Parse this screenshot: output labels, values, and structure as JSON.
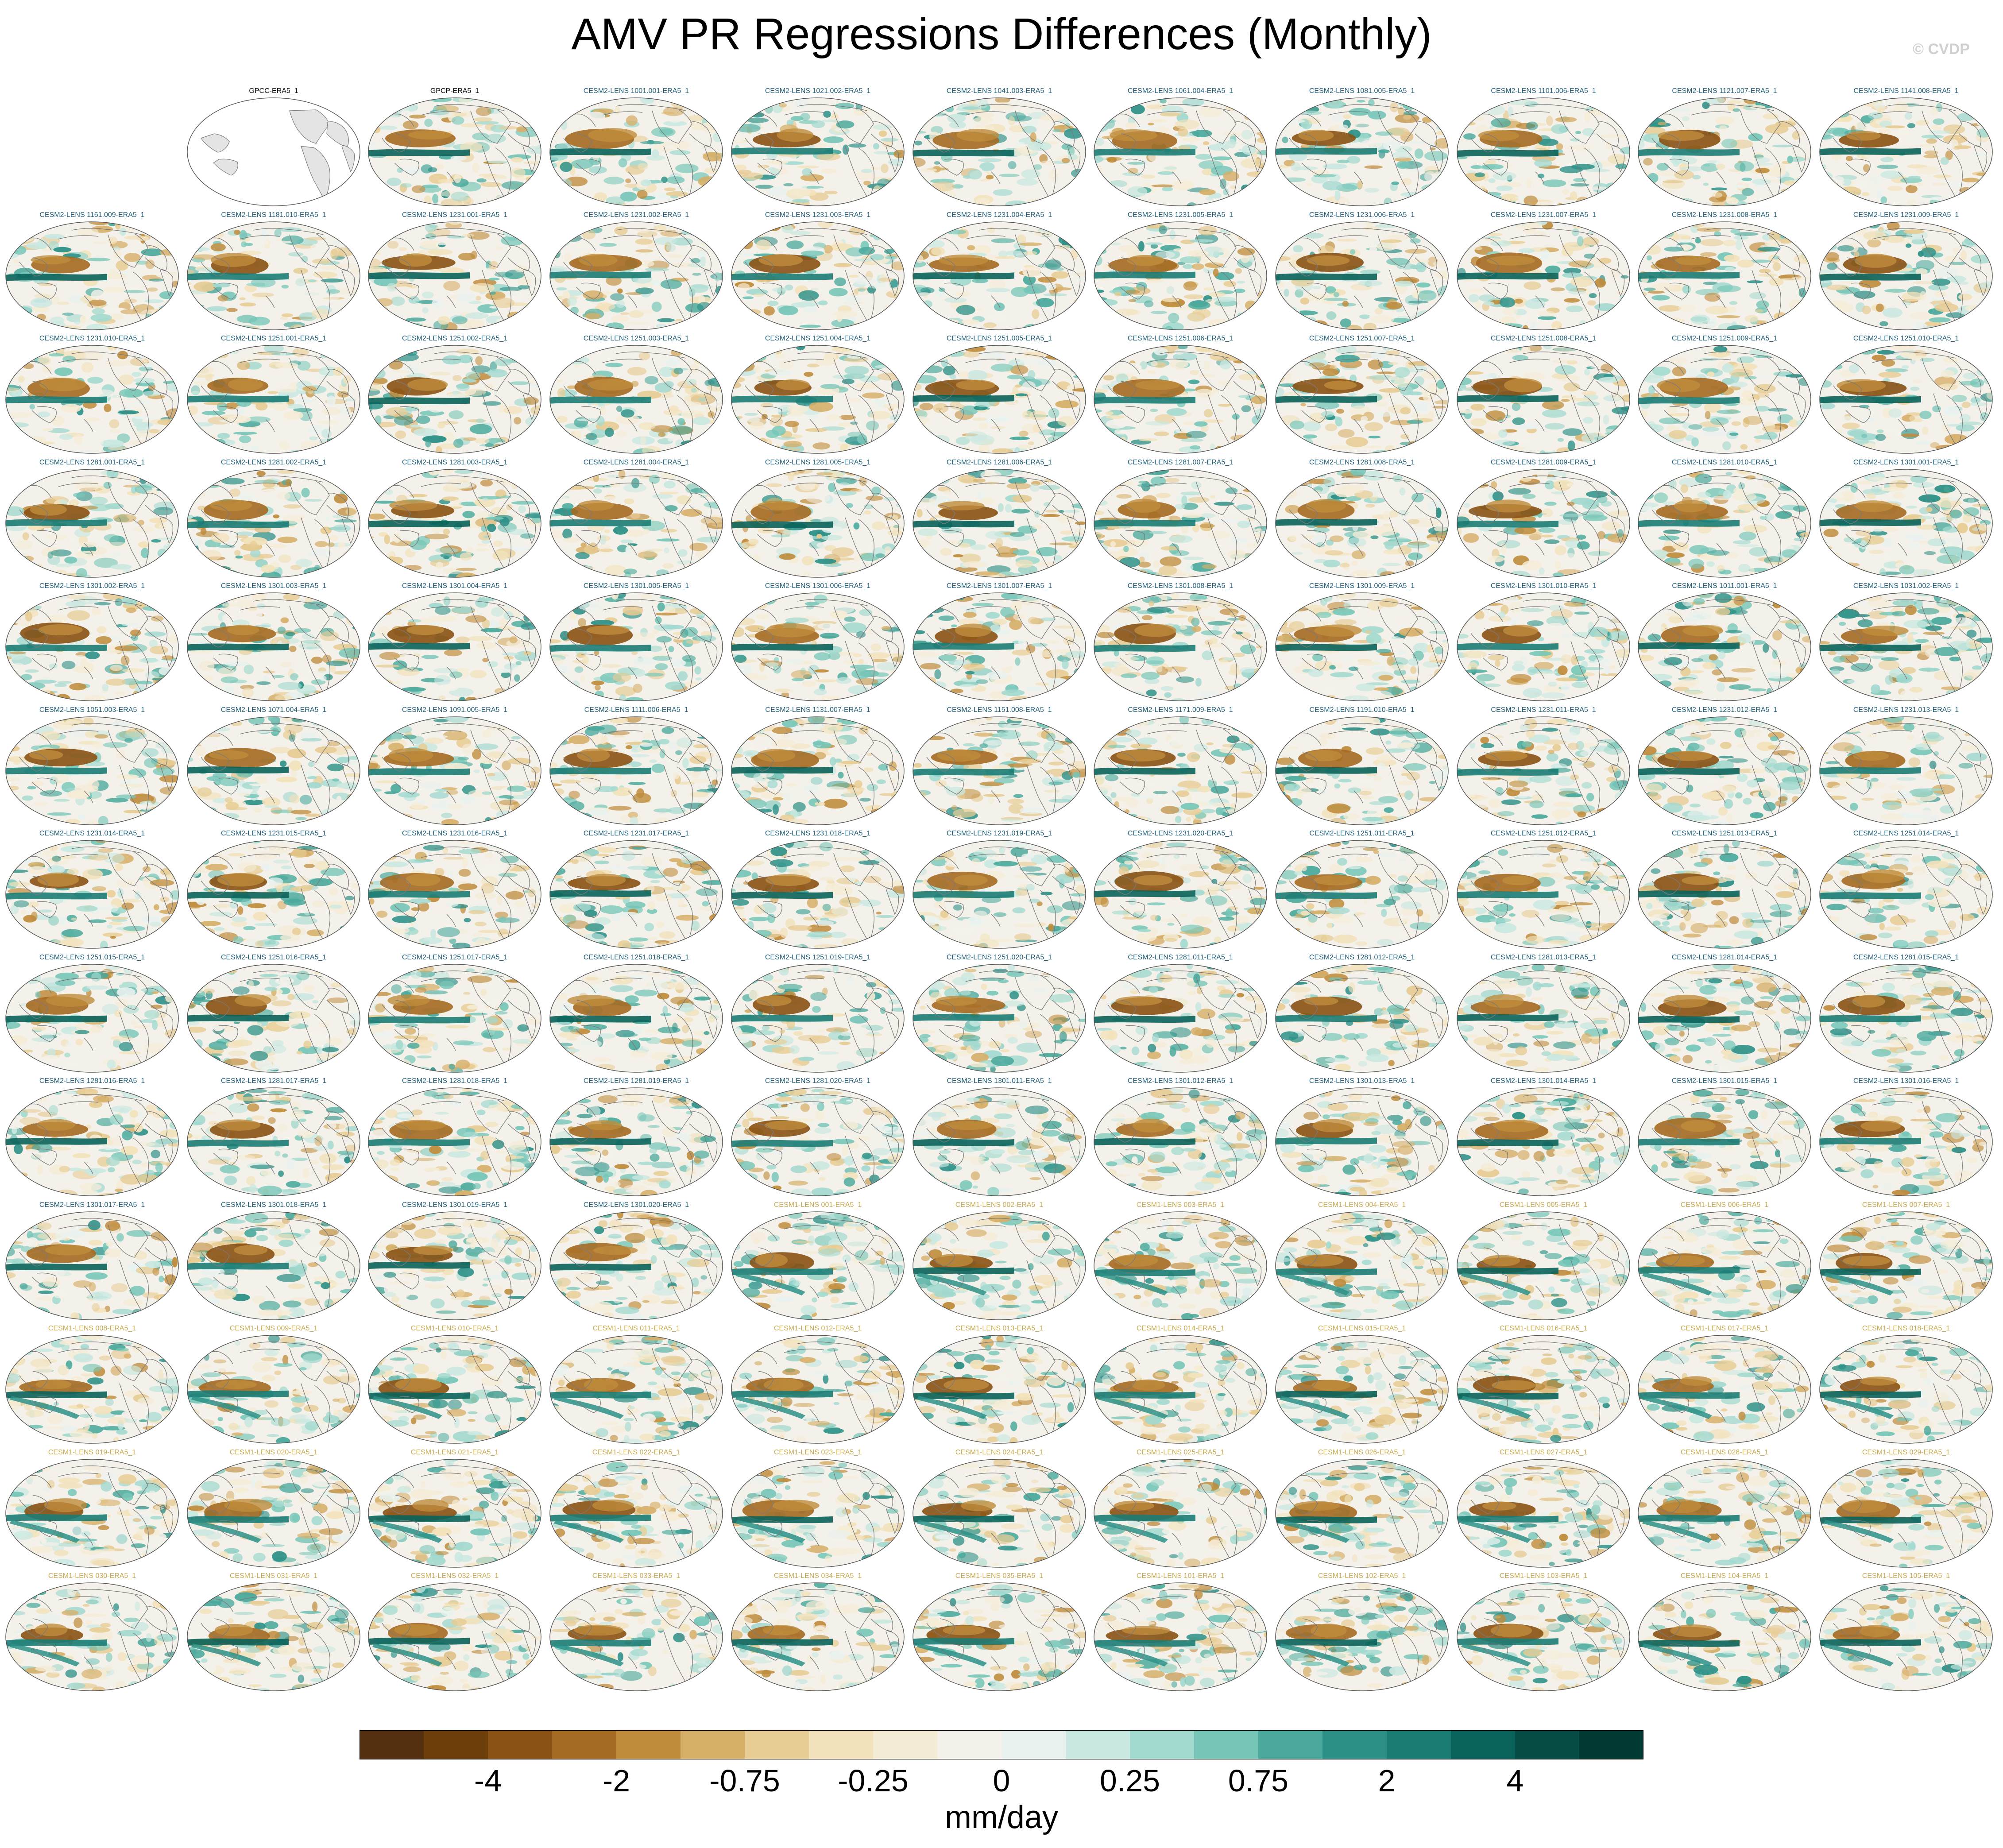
{
  "title": "AMV PR Regressions Differences (Monthly)",
  "credit": "© CVDP",
  "colorbar": {
    "units": "mm/day",
    "tick_labels": [
      "-4",
      "-2",
      "-0.75",
      "-0.25",
      "0",
      "0.25",
      "0.75",
      "2",
      "4"
    ],
    "colors": [
      "#553010",
      "#6c3f0a",
      "#8a5214",
      "#a56a22",
      "#bf8c3c",
      "#d6af69",
      "#e7cc94",
      "#f2e2bb",
      "#f5ecd6",
      "#f4f1ea",
      "#e9f2ef",
      "#c9e8e1",
      "#a2d9cf",
      "#76c6b8",
      "#4aa99c",
      "#2c9087",
      "#1b7c74",
      "#0a635b",
      "#044c44",
      "#013a32"
    ]
  },
  "title_colors": {
    "obs": "#000000",
    "cesm2": "#1f5f7a",
    "cesm1": "#c9ab50"
  },
  "map_colors": {
    "border": "#555555",
    "land_empty": "#e4e4e4",
    "coast": "#7a7a7a"
  },
  "panels": [
    {
      "title": "GPCC-ERA5_1",
      "group": "obs",
      "empty": true
    },
    {
      "title": "GPCP-ERA5_1",
      "group": "obs",
      "empty": false
    },
    {
      "title": "CESM2-LENS 1001.001-ERA5_1",
      "group": "cesm2"
    },
    {
      "title": "CESM2-LENS 1021.002-ERA5_1",
      "group": "cesm2"
    },
    {
      "title": "CESM2-LENS 1041.003-ERA5_1",
      "group": "cesm2"
    },
    {
      "title": "CESM2-LENS 1061.004-ERA5_1",
      "group": "cesm2"
    },
    {
      "title": "CESM2-LENS 1081.005-ERA5_1",
      "group": "cesm2"
    },
    {
      "title": "CESM2-LENS 1101.006-ERA5_1",
      "group": "cesm2"
    },
    {
      "title": "CESM2-LENS 1121.007-ERA5_1",
      "group": "cesm2"
    },
    {
      "title": "CESM2-LENS 1141.008-ERA5_1",
      "group": "cesm2"
    },
    {
      "title": "CESM2-LENS 1161.009-ERA5_1",
      "group": "cesm2"
    },
    {
      "title": "CESM2-LENS 1181.010-ERA5_1",
      "group": "cesm2"
    },
    {
      "title": "CESM2-LENS 1231.001-ERA5_1",
      "group": "cesm2"
    },
    {
      "title": "CESM2-LENS 1231.002-ERA5_1",
      "group": "cesm2"
    },
    {
      "title": "CESM2-LENS 1231.003-ERA5_1",
      "group": "cesm2"
    },
    {
      "title": "CESM2-LENS 1231.004-ERA5_1",
      "group": "cesm2"
    },
    {
      "title": "CESM2-LENS 1231.005-ERA5_1",
      "group": "cesm2"
    },
    {
      "title": "CESM2-LENS 1231.006-ERA5_1",
      "group": "cesm2"
    },
    {
      "title": "CESM2-LENS 1231.007-ERA5_1",
      "group": "cesm2"
    },
    {
      "title": "CESM2-LENS 1231.008-ERA5_1",
      "group": "cesm2"
    },
    {
      "title": "CESM2-LENS 1231.009-ERA5_1",
      "group": "cesm2"
    },
    {
      "title": "CESM2-LENS 1231.010-ERA5_1",
      "group": "cesm2"
    },
    {
      "title": "CESM2-LENS 1251.001-ERA5_1",
      "group": "cesm2"
    },
    {
      "title": "CESM2-LENS 1251.002-ERA5_1",
      "group": "cesm2"
    },
    {
      "title": "CESM2-LENS 1251.003-ERA5_1",
      "group": "cesm2"
    },
    {
      "title": "CESM2-LENS 1251.004-ERA5_1",
      "group": "cesm2"
    },
    {
      "title": "CESM2-LENS 1251.005-ERA5_1",
      "group": "cesm2"
    },
    {
      "title": "CESM2-LENS 1251.006-ERA5_1",
      "group": "cesm2"
    },
    {
      "title": "CESM2-LENS 1251.007-ERA5_1",
      "group": "cesm2"
    },
    {
      "title": "CESM2-LENS 1251.008-ERA5_1",
      "group": "cesm2"
    },
    {
      "title": "CESM2-LENS 1251.009-ERA5_1",
      "group": "cesm2"
    },
    {
      "title": "CESM2-LENS 1251.010-ERA5_1",
      "group": "cesm2"
    },
    {
      "title": "CESM2-LENS 1281.001-ERA5_1",
      "group": "cesm2"
    },
    {
      "title": "CESM2-LENS 1281.002-ERA5_1",
      "group": "cesm2"
    },
    {
      "title": "CESM2-LENS 1281.003-ERA5_1",
      "group": "cesm2"
    },
    {
      "title": "CESM2-LENS 1281.004-ERA5_1",
      "group": "cesm2"
    },
    {
      "title": "CESM2-LENS 1281.005-ERA5_1",
      "group": "cesm2"
    },
    {
      "title": "CESM2-LENS 1281.006-ERA5_1",
      "group": "cesm2"
    },
    {
      "title": "CESM2-LENS 1281.007-ERA5_1",
      "group": "cesm2"
    },
    {
      "title": "CESM2-LENS 1281.008-ERA5_1",
      "group": "cesm2"
    },
    {
      "title": "CESM2-LENS 1281.009-ERA5_1",
      "group": "cesm2"
    },
    {
      "title": "CESM2-LENS 1281.010-ERA5_1",
      "group": "cesm2"
    },
    {
      "title": "CESM2-LENS 1301.001-ERA5_1",
      "group": "cesm2"
    },
    {
      "title": "CESM2-LENS 1301.002-ERA5_1",
      "group": "cesm2"
    },
    {
      "title": "CESM2-LENS 1301.003-ERA5_1",
      "group": "cesm2"
    },
    {
      "title": "CESM2-LENS 1301.004-ERA5_1",
      "group": "cesm2"
    },
    {
      "title": "CESM2-LENS 1301.005-ERA5_1",
      "group": "cesm2"
    },
    {
      "title": "CESM2-LENS 1301.006-ERA5_1",
      "group": "cesm2"
    },
    {
      "title": "CESM2-LENS 1301.007-ERA5_1",
      "group": "cesm2"
    },
    {
      "title": "CESM2-LENS 1301.008-ERA5_1",
      "group": "cesm2"
    },
    {
      "title": "CESM2-LENS 1301.009-ERA5_1",
      "group": "cesm2"
    },
    {
      "title": "CESM2-LENS 1301.010-ERA5_1",
      "group": "cesm2"
    },
    {
      "title": "CESM2-LENS 1011.001-ERA5_1",
      "group": "cesm2"
    },
    {
      "title": "CESM2-LENS 1031.002-ERA5_1",
      "group": "cesm2"
    },
    {
      "title": "CESM2-LENS 1051.003-ERA5_1",
      "group": "cesm2"
    },
    {
      "title": "CESM2-LENS 1071.004-ERA5_1",
      "group": "cesm2"
    },
    {
      "title": "CESM2-LENS 1091.005-ERA5_1",
      "group": "cesm2"
    },
    {
      "title": "CESM2-LENS 1111.006-ERA5_1",
      "group": "cesm2"
    },
    {
      "title": "CESM2-LENS 1131.007-ERA5_1",
      "group": "cesm2"
    },
    {
      "title": "CESM2-LENS 1151.008-ERA5_1",
      "group": "cesm2"
    },
    {
      "title": "CESM2-LENS 1171.009-ERA5_1",
      "group": "cesm2"
    },
    {
      "title": "CESM2-LENS 1191.010-ERA5_1",
      "group": "cesm2"
    },
    {
      "title": "CESM2-LENS 1231.011-ERA5_1",
      "group": "cesm2"
    },
    {
      "title": "CESM2-LENS 1231.012-ERA5_1",
      "group": "cesm2"
    },
    {
      "title": "CESM2-LENS 1231.013-ERA5_1",
      "group": "cesm2"
    },
    {
      "title": "CESM2-LENS 1231.014-ERA5_1",
      "group": "cesm2"
    },
    {
      "title": "CESM2-LENS 1231.015-ERA5_1",
      "group": "cesm2"
    },
    {
      "title": "CESM2-LENS 1231.016-ERA5_1",
      "group": "cesm2"
    },
    {
      "title": "CESM2-LENS 1231.017-ERA5_1",
      "group": "cesm2"
    },
    {
      "title": "CESM2-LENS 1231.018-ERA5_1",
      "group": "cesm2"
    },
    {
      "title": "CESM2-LENS 1231.019-ERA5_1",
      "group": "cesm2"
    },
    {
      "title": "CESM2-LENS 1231.020-ERA5_1",
      "group": "cesm2"
    },
    {
      "title": "CESM2-LENS 1251.011-ERA5_1",
      "group": "cesm2"
    },
    {
      "title": "CESM2-LENS 1251.012-ERA5_1",
      "group": "cesm2"
    },
    {
      "title": "CESM2-LENS 1251.013-ERA5_1",
      "group": "cesm2"
    },
    {
      "title": "CESM2-LENS 1251.014-ERA5_1",
      "group": "cesm2"
    },
    {
      "title": "CESM2-LENS 1251.015-ERA5_1",
      "group": "cesm2"
    },
    {
      "title": "CESM2-LENS 1251.016-ERA5_1",
      "group": "cesm2"
    },
    {
      "title": "CESM2-LENS 1251.017-ERA5_1",
      "group": "cesm2"
    },
    {
      "title": "CESM2-LENS 1251.018-ERA5_1",
      "group": "cesm2"
    },
    {
      "title": "CESM2-LENS 1251.019-ERA5_1",
      "group": "cesm2"
    },
    {
      "title": "CESM2-LENS 1251.020-ERA5_1",
      "group": "cesm2"
    },
    {
      "title": "CESM2-LENS 1281.011-ERA5_1",
      "group": "cesm2"
    },
    {
      "title": "CESM2-LENS 1281.012-ERA5_1",
      "group": "cesm2"
    },
    {
      "title": "CESM2-LENS 1281.013-ERA5_1",
      "group": "cesm2"
    },
    {
      "title": "CESM2-LENS 1281.014-ERA5_1",
      "group": "cesm2"
    },
    {
      "title": "CESM2-LENS 1281.015-ERA5_1",
      "group": "cesm2"
    },
    {
      "title": "CESM2-LENS 1281.016-ERA5_1",
      "group": "cesm2"
    },
    {
      "title": "CESM2-LENS 1281.017-ERA5_1",
      "group": "cesm2"
    },
    {
      "title": "CESM2-LENS 1281.018-ERA5_1",
      "group": "cesm2"
    },
    {
      "title": "CESM2-LENS 1281.019-ERA5_1",
      "group": "cesm2"
    },
    {
      "title": "CESM2-LENS 1281.020-ERA5_1",
      "group": "cesm2"
    },
    {
      "title": "CESM2-LENS 1301.011-ERA5_1",
      "group": "cesm2"
    },
    {
      "title": "CESM2-LENS 1301.012-ERA5_1",
      "group": "cesm2"
    },
    {
      "title": "CESM2-LENS 1301.013-ERA5_1",
      "group": "cesm2"
    },
    {
      "title": "CESM2-LENS 1301.014-ERA5_1",
      "group": "cesm2"
    },
    {
      "title": "CESM2-LENS 1301.015-ERA5_1",
      "group": "cesm2"
    },
    {
      "title": "CESM2-LENS 1301.016-ERA5_1",
      "group": "cesm2"
    },
    {
      "title": "CESM2-LENS 1301.017-ERA5_1",
      "group": "cesm2"
    },
    {
      "title": "CESM2-LENS 1301.018-ERA5_1",
      "group": "cesm2"
    },
    {
      "title": "CESM2-LENS 1301.019-ERA5_1",
      "group": "cesm2"
    },
    {
      "title": "CESM2-LENS 1301.020-ERA5_1",
      "group": "cesm2"
    },
    {
      "title": "CESM1-LENS 001-ERA5_1",
      "group": "cesm1"
    },
    {
      "title": "CESM1-LENS 002-ERA5_1",
      "group": "cesm1"
    },
    {
      "title": "CESM1-LENS 003-ERA5_1",
      "group": "cesm1"
    },
    {
      "title": "CESM1-LENS 004-ERA5_1",
      "group": "cesm1"
    },
    {
      "title": "CESM1-LENS 005-ERA5_1",
      "group": "cesm1"
    },
    {
      "title": "CESM1-LENS 006-ERA5_1",
      "group": "cesm1"
    },
    {
      "title": "CESM1-LENS 007-ERA5_1",
      "group": "cesm1"
    },
    {
      "title": "CESM1-LENS 008-ERA5_1",
      "group": "cesm1"
    },
    {
      "title": "CESM1-LENS 009-ERA5_1",
      "group": "cesm1"
    },
    {
      "title": "CESM1-LENS 010-ERA5_1",
      "group": "cesm1"
    },
    {
      "title": "CESM1-LENS 011-ERA5_1",
      "group": "cesm1"
    },
    {
      "title": "CESM1-LENS 012-ERA5_1",
      "group": "cesm1"
    },
    {
      "title": "CESM1-LENS 013-ERA5_1",
      "group": "cesm1"
    },
    {
      "title": "CESM1-LENS 014-ERA5_1",
      "group": "cesm1"
    },
    {
      "title": "CESM1-LENS 015-ERA5_1",
      "group": "cesm1"
    },
    {
      "title": "CESM1-LENS 016-ERA5_1",
      "group": "cesm1"
    },
    {
      "title": "CESM1-LENS 017-ERA5_1",
      "group": "cesm1"
    },
    {
      "title": "CESM1-LENS 018-ERA5_1",
      "group": "cesm1"
    },
    {
      "title": "CESM1-LENS 019-ERA5_1",
      "group": "cesm1"
    },
    {
      "title": "CESM1-LENS 020-ERA5_1",
      "group": "cesm1"
    },
    {
      "title": "CESM1-LENS 021-ERA5_1",
      "group": "cesm1"
    },
    {
      "title": "CESM1-LENS 022-ERA5_1",
      "group": "cesm1"
    },
    {
      "title": "CESM1-LENS 023-ERA5_1",
      "group": "cesm1"
    },
    {
      "title": "CESM1-LENS 024-ERA5_1",
      "group": "cesm1"
    },
    {
      "title": "CESM1-LENS 025-ERA5_1",
      "group": "cesm1"
    },
    {
      "title": "CESM1-LENS 026-ERA5_1",
      "group": "cesm1"
    },
    {
      "title": "CESM1-LENS 027-ERA5_1",
      "group": "cesm1"
    },
    {
      "title": "CESM1-LENS 028-ERA5_1",
      "group": "cesm1"
    },
    {
      "title": "CESM1-LENS 029-ERA5_1",
      "group": "cesm1"
    },
    {
      "title": "CESM1-LENS 030-ERA5_1",
      "group": "cesm1"
    },
    {
      "title": "CESM1-LENS 031-ERA5_1",
      "group": "cesm1"
    },
    {
      "title": "CESM1-LENS 032-ERA5_1",
      "group": "cesm1"
    },
    {
      "title": "CESM1-LENS 033-ERA5_1",
      "group": "cesm1"
    },
    {
      "title": "CESM1-LENS 034-ERA5_1",
      "group": "cesm1"
    },
    {
      "title": "CESM1-LENS 035-ERA5_1",
      "group": "cesm1"
    },
    {
      "title": "CESM1-LENS 101-ERA5_1",
      "group": "cesm1"
    },
    {
      "title": "CESM1-LENS 102-ERA5_1",
      "group": "cesm1"
    },
    {
      "title": "CESM1-LENS 103-ERA5_1",
      "group": "cesm1"
    },
    {
      "title": "CESM1-LENS 104-ERA5_1",
      "group": "cesm1"
    },
    {
      "title": "CESM1-LENS 105-ERA5_1",
      "group": "cesm1"
    }
  ]
}
